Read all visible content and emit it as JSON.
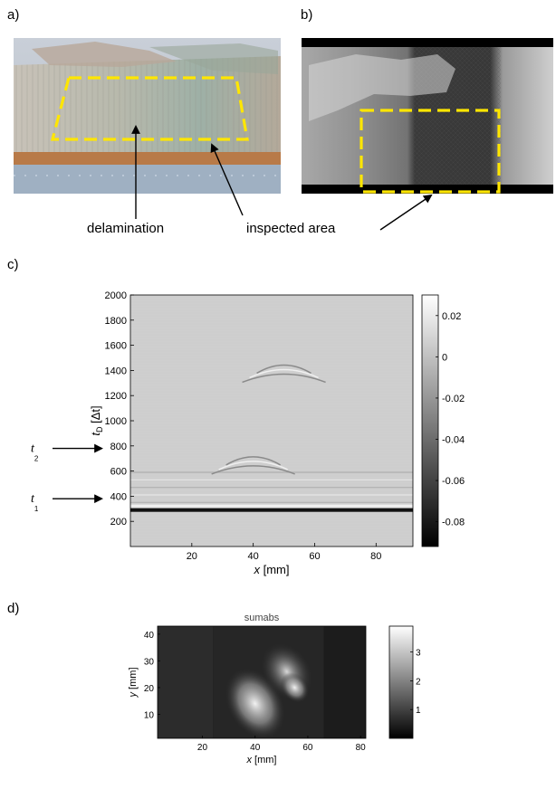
{
  "panels": {
    "a": {
      "label": "a)",
      "callout": "delamination"
    },
    "b": {
      "label": "b)",
      "callout": "inspected area"
    },
    "c": {
      "label": "c)",
      "ylabel_var": "t",
      "ylabel_sub": "D",
      "ylabel_unit": "[Δt]",
      "xlabel_var": "x",
      "xlabel_unit": "[mm]",
      "markers": [
        {
          "var": "t",
          "sub": "2",
          "y_value": 780
        },
        {
          "var": "t",
          "sub": "1",
          "y_value": 380
        }
      ]
    },
    "d": {
      "label": "d)",
      "title": "sumabs",
      "xlabel_var": "x",
      "xlabel_unit": "[mm]",
      "ylabel_var": "y",
      "ylabel_unit": "[mm]"
    }
  },
  "colors": {
    "dash_highlight": "#ffe600",
    "arrow": "#000000"
  },
  "chart_data": [
    {
      "type": "heatmap",
      "panel": "c",
      "title": "",
      "x_ticks": [
        20,
        40,
        60,
        80
      ],
      "y_ticks": [
        200,
        400,
        600,
        800,
        1000,
        1200,
        1400,
        1600,
        1800,
        2000
      ],
      "xlim": [
        0,
        92
      ],
      "ylim": [
        0,
        2000
      ],
      "colorbar_ticks": [
        "0.02",
        "0",
        "-0.02",
        "-0.04",
        "-0.06",
        "-0.08"
      ],
      "colorbar_values": [
        0.02,
        0,
        -0.02,
        -0.04,
        -0.06,
        -0.08
      ],
      "colorbar_range": [
        -0.092,
        0.03
      ],
      "colormap": "gray",
      "features": [
        {
          "kind": "strong horizontal reflection",
          "y": 290
        },
        {
          "kind": "hyperbolic echo",
          "x": 40,
          "y": 720
        },
        {
          "kind": "hyperbolic echo",
          "x": 50,
          "y": 1450
        }
      ]
    },
    {
      "type": "heatmap",
      "panel": "d",
      "title": "sumabs",
      "x_ticks": [
        20,
        40,
        60,
        80
      ],
      "y_ticks": [
        10,
        20,
        30,
        40
      ],
      "xlim": [
        3,
        82
      ],
      "ylim": [
        1,
        43
      ],
      "colorbar_ticks": [
        "1",
        "2",
        "3"
      ],
      "colorbar_values": [
        1,
        2,
        3
      ],
      "colorbar_range": [
        0,
        3.9
      ],
      "colormap": "gray"
    }
  ]
}
